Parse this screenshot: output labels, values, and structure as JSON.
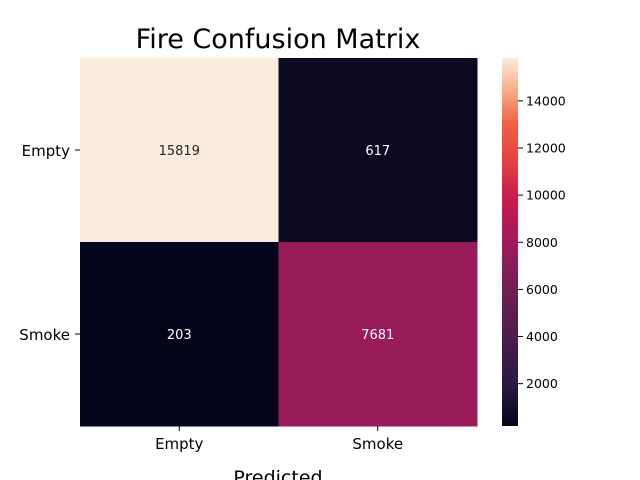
{
  "chart_data": {
    "type": "heatmap",
    "title": "Fire Confusion Matrix",
    "xlabel": "Predicted",
    "ylabel": "",
    "x_categories": [
      "Empty",
      "Smoke"
    ],
    "y_categories": [
      "Empty",
      "Smoke"
    ],
    "values": [
      [
        15819,
        617
      ],
      [
        203,
        7681
      ]
    ],
    "colorbar": {
      "colormap": "rocket",
      "range": [
        203,
        15819
      ],
      "ticks": [
        2000,
        4000,
        6000,
        8000,
        10000,
        12000,
        14000
      ]
    },
    "grid": false
  }
}
